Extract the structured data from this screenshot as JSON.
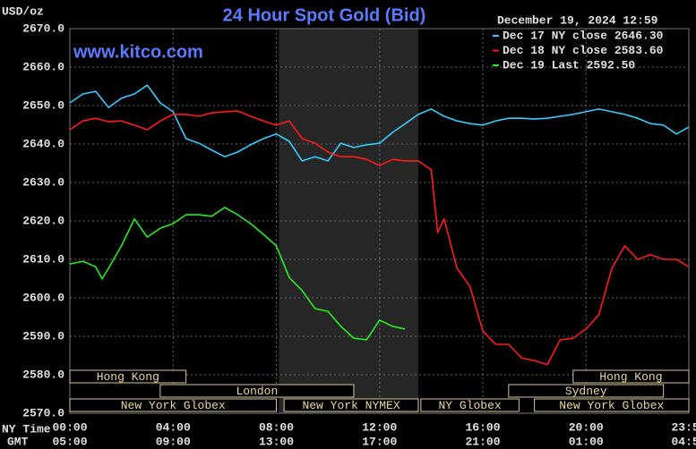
{
  "chart_data": {
    "type": "line",
    "title": "24 Hour Spot Gold (Bid)",
    "y_unit": "USD/oz",
    "timestamp": "December 19, 2024 12:59",
    "watermark": "www.kitco.com",
    "x_axis_label": "NY Time",
    "x2_axis_label": "GMT",
    "xlim": [
      0,
      23.983
    ],
    "xticks": [
      {
        "value": 0,
        "label": "00:00"
      },
      {
        "value": 4,
        "label": "04:00"
      },
      {
        "value": 8,
        "label": "08:00"
      },
      {
        "value": 12,
        "label": "12:00"
      },
      {
        "value": 16,
        "label": "16:00"
      },
      {
        "value": 20,
        "label": "20:00"
      },
      {
        "value": 23.983,
        "label": "23:59"
      }
    ],
    "x2ticks": [
      {
        "value": 0,
        "label": "05:00"
      },
      {
        "value": 4,
        "label": "09:00"
      },
      {
        "value": 8,
        "label": "13:00"
      },
      {
        "value": 12,
        "label": "17:00"
      },
      {
        "value": 16,
        "label": "21:00"
      },
      {
        "value": 20,
        "label": "01:00"
      },
      {
        "value": 23.983,
        "label": "04:59"
      }
    ],
    "ylim": [
      2570,
      2670
    ],
    "yticks": [
      {
        "value": 2570,
        "label": "2570.0"
      },
      {
        "value": 2580,
        "label": "2580.0"
      },
      {
        "value": 2590,
        "label": "2590.0"
      },
      {
        "value": 2600,
        "label": "2600.0"
      },
      {
        "value": 2610,
        "label": "2610.0"
      },
      {
        "value": 2620,
        "label": "2620.0"
      },
      {
        "value": 2630,
        "label": "2630.0"
      },
      {
        "value": 2640,
        "label": "2640.0"
      },
      {
        "value": 2650,
        "label": "2650.0"
      },
      {
        "value": 2660,
        "label": "2660.0"
      },
      {
        "value": 2670,
        "label": "2670.0"
      }
    ],
    "grid": true,
    "shaded_range": [
      8.1,
      13.5
    ],
    "sessions": [
      {
        "name": "Hong Kong",
        "start": 0,
        "end": 4.5,
        "row": 0
      },
      {
        "name": "Hong Kong",
        "start": 19.5,
        "end": 23.983,
        "row": 0
      },
      {
        "name": "London",
        "start": 3.5,
        "end": 11.0,
        "row": 1
      },
      {
        "name": "Sydney",
        "start": 17.0,
        "end": 23.0,
        "row": 1
      },
      {
        "name": "New York Globex",
        "start": 0,
        "end": 8.0,
        "row": 2
      },
      {
        "name": "New York NYMEX",
        "start": 8.3,
        "end": 13.5,
        "row": 2
      },
      {
        "name": "NY Globex",
        "start": 13.6,
        "end": 17.4,
        "row": 2
      },
      {
        "name": "New York Globex",
        "start": 18.0,
        "end": 23.983,
        "row": 2
      }
    ],
    "series": [
      {
        "name": "Dec 17 NY close 2646.30",
        "color": "#33ccff",
        "x": [
          0,
          0.5,
          1,
          1.5,
          2,
          2.5,
          3,
          3.5,
          4,
          4.5,
          5,
          5.5,
          6,
          6.5,
          7,
          7.5,
          8,
          8.5,
          9,
          9.5,
          10,
          10.5,
          11,
          11.5,
          12,
          12.5,
          13,
          13.5,
          14,
          14.5,
          15,
          15.5,
          16,
          16.5,
          17,
          17.5,
          18,
          18.5,
          19,
          19.5,
          20,
          20.5,
          21,
          21.5,
          22,
          22.5,
          23,
          23.5,
          23.98
        ],
        "values": [
          2650.7,
          2653,
          2653.7,
          2649.5,
          2651.9,
          2653,
          2655.3,
          2650.7,
          2648.4,
          2641.4,
          2640.2,
          2638.4,
          2636.7,
          2637.9,
          2639.8,
          2641.4,
          2642.6,
          2640.7,
          2635.6,
          2636.7,
          2635.6,
          2640.2,
          2639.1,
          2639.8,
          2640.2,
          2643,
          2645.3,
          2647.7,
          2649.1,
          2647.2,
          2646,
          2645.3,
          2644.9,
          2646,
          2646.7,
          2646.7,
          2646.5,
          2646.7,
          2647.2,
          2647.7,
          2648.4,
          2649.1,
          2648.4,
          2647.7,
          2646.7,
          2645.3,
          2644.9,
          2642.6,
          2644.4
        ]
      },
      {
        "name": "Dec 18 NY close 2583.60",
        "color": "#ff1a1a",
        "x": [
          0,
          0.5,
          1,
          1.5,
          2,
          2.5,
          3,
          3.5,
          4,
          4.5,
          5,
          5.5,
          6,
          6.5,
          7,
          7.5,
          8,
          8.5,
          9,
          9.5,
          10,
          10.5,
          11,
          11.5,
          12,
          12.5,
          13,
          13.5,
          14,
          14.25,
          14.5,
          15,
          15.5,
          16,
          16.5,
          17,
          17.5,
          18,
          18.5,
          19,
          19.5,
          20,
          20.5,
          21,
          21.5,
          22,
          22.5,
          23,
          23.5,
          23.98
        ],
        "values": [
          2643.7,
          2646,
          2646.7,
          2645.8,
          2646,
          2644.9,
          2643.7,
          2646,
          2647.7,
          2647.7,
          2647.2,
          2648.1,
          2648.4,
          2648.6,
          2647.2,
          2646,
          2644.9,
          2646,
          2641.4,
          2640.2,
          2637.9,
          2636.7,
          2636.7,
          2636,
          2634.4,
          2636,
          2635.6,
          2635.6,
          2633.3,
          2617,
          2620.5,
          2607.7,
          2603,
          2591.4,
          2587.9,
          2587.9,
          2584.4,
          2583.7,
          2582.6,
          2589.1,
          2589.5,
          2591.9,
          2595.6,
          2607.7,
          2613.5,
          2610,
          2611.2,
          2610,
          2610,
          2608.1
        ]
      },
      {
        "name": "Dec 19 Last 2592.50",
        "color": "#22ee22",
        "x": [
          0,
          0.5,
          1,
          1.25,
          1.5,
          2,
          2.5,
          3,
          3.5,
          4,
          4.5,
          5,
          5.5,
          6,
          6.5,
          7,
          7.5,
          8,
          8.5,
          9,
          9.5,
          10,
          10.5,
          11,
          11.5,
          12,
          12.5,
          12.98
        ],
        "values": [
          2608.8,
          2609.5,
          2608.1,
          2604.9,
          2607.7,
          2613.5,
          2620.5,
          2615.8,
          2618.1,
          2619.3,
          2621.6,
          2621.6,
          2621.2,
          2623.5,
          2621.6,
          2619.3,
          2616.5,
          2613.5,
          2605.3,
          2601.9,
          2597.2,
          2596.5,
          2592.6,
          2589.5,
          2589.1,
          2594.2,
          2592.6,
          2591.9
        ]
      }
    ]
  }
}
